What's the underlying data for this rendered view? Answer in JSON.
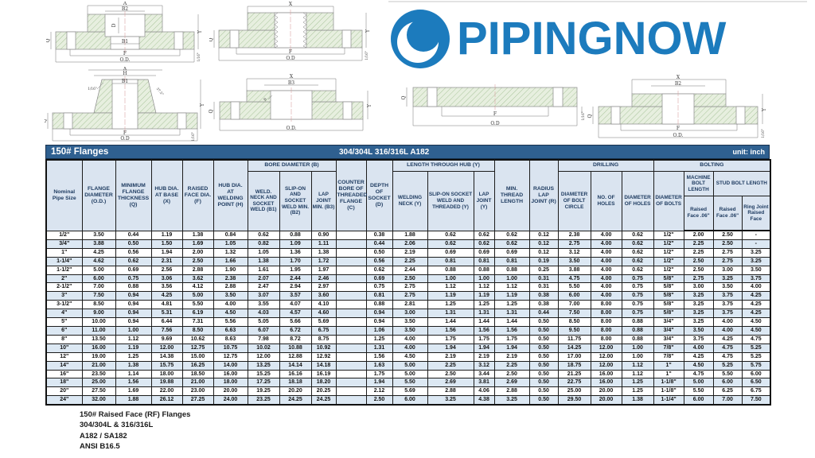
{
  "logo": {
    "text": "PIPINGNOW",
    "color": "#1c7bbd"
  },
  "title_bar": {
    "title": "150# Flanges",
    "material": "304/304L 316/316L A182",
    "unit": "unit: inch"
  },
  "table": {
    "groups": {
      "bore": "BORE DIAMETER (B)",
      "length_hub": "LENGTH THROUGH HUB (Y)",
      "drilling": "DRILLING",
      "bolting": "BOLTING"
    },
    "headers": {
      "size": "Nominal Pipe Size",
      "od": "FLANGE DIAMETER (O.D.)",
      "q": "MINIMUM FLANGE THICKNESS (Q)",
      "x": "HUB DIA. AT BASE (X)",
      "f": "RAISED FACE DIA. (F)",
      "h": "HUB DIA. AT WELDING POINT (H)",
      "b1": "WELD. NECK AND SOCKET WELD (B1)",
      "b2": "SLIP-ON AND SOCKET WELD MIN. (B2)",
      "b3": "LAP JOINT MIN. (B3)",
      "c": "COUNTER BORE OF THREADED FLANGE (C)",
      "d": "DEPTH OF SOCKET (D)",
      "y_wn": "WELDING NECK (Y)",
      "y_so": "SLIP-ON SOCKET WELD AND THREADED (Y)",
      "y_lj": "LAP JOINT (Y)",
      "min_thread": "MIN. THREAD LENGTH",
      "radius": "RADIUS LAP JOINT (R)",
      "bolt_circle": "DIAMETER OF BOLT CIRCLE",
      "num_holes": "NO. OF HOLES",
      "hole_dia": "DIAMETER OF HOLES",
      "bolt_dia": "DIAMETER OF BOLTS",
      "machine_bolt": "MACHINE BOLT LENGTH",
      "stud_bolt": "STUD BOLT LENGTH",
      "rf_machine": "Raised Face .06\"",
      "rf_stud": "Raised Face .06\"",
      "ring_joint": "Ring Joint Raised Face"
    },
    "rows": [
      [
        "1/2\"",
        "3.50",
        "0.44",
        "1.19",
        "1.38",
        "0.84",
        "0.62",
        "0.88",
        "0.90",
        "",
        "0.38",
        "1.88",
        "0.62",
        "0.62",
        "0.62",
        "0.12",
        "2.38",
        "4.00",
        "0.62",
        "1/2\"",
        "2.00",
        "2.50",
        "-"
      ],
      [
        "3/4\"",
        "3.88",
        "0.50",
        "1.50",
        "1.69",
        "1.05",
        "0.82",
        "1.09",
        "1.11",
        "",
        "0.44",
        "2.06",
        "0.62",
        "0.62",
        "0.62",
        "0.12",
        "2.75",
        "4.00",
        "0.62",
        "1/2\"",
        "2.25",
        "2.50",
        "-"
      ],
      [
        "1\"",
        "4.25",
        "0.56",
        "1.94",
        "2.00",
        "1.32",
        "1.05",
        "1.36",
        "1.38",
        "",
        "0.50",
        "2.19",
        "0.69",
        "0.69",
        "0.69",
        "0.12",
        "3.12",
        "4.00",
        "0.62",
        "1/2\"",
        "2.25",
        "2.75",
        "3.25"
      ],
      [
        "1-1/4\"",
        "4.62",
        "0.62",
        "2.31",
        "2.50",
        "1.66",
        "1.38",
        "1.70",
        "1.72",
        "",
        "0.56",
        "2.25",
        "0.81",
        "0.81",
        "0.81",
        "0.19",
        "3.50",
        "4.00",
        "0.62",
        "1/2\"",
        "2.50",
        "2.75",
        "3.25"
      ],
      [
        "1-1/2\"",
        "5.00",
        "0.69",
        "2.56",
        "2.88",
        "1.90",
        "1.61",
        "1.95",
        "1.97",
        "",
        "0.62",
        "2.44",
        "0.88",
        "0.88",
        "0.88",
        "0.25",
        "3.88",
        "4.00",
        "0.62",
        "1/2\"",
        "2.50",
        "3.00",
        "3.50"
      ],
      [
        "2\"",
        "6.00",
        "0.75",
        "3.06",
        "3.62",
        "2.38",
        "2.07",
        "2.44",
        "2.46",
        "",
        "0.69",
        "2.50",
        "1.00",
        "1.00",
        "1.00",
        "0.31",
        "4.75",
        "4.00",
        "0.75",
        "5/8\"",
        "2.75",
        "3.25",
        "3.75"
      ],
      [
        "2-1/2\"",
        "7.00",
        "0.88",
        "3.56",
        "4.12",
        "2.88",
        "2.47",
        "2.94",
        "2.97",
        "",
        "0.75",
        "2.75",
        "1.12",
        "1.12",
        "1.12",
        "0.31",
        "5.50",
        "4.00",
        "0.75",
        "5/8\"",
        "3.00",
        "3.50",
        "4.00"
      ],
      [
        "3\"",
        "7.50",
        "0.94",
        "4.25",
        "5.00",
        "3.50",
        "3.07",
        "3.57",
        "3.60",
        "",
        "0.81",
        "2.75",
        "1.19",
        "1.19",
        "1.19",
        "0.38",
        "6.00",
        "4.00",
        "0.75",
        "5/8\"",
        "3.25",
        "3.75",
        "4.25"
      ],
      [
        "3-1/2\"",
        "8.50",
        "0.94",
        "4.81",
        "5.50",
        "4.00",
        "3.55",
        "4.07",
        "4.10",
        "",
        "0.88",
        "2.81",
        "1.25",
        "1.25",
        "1.25",
        "0.38",
        "7.00",
        "8.00",
        "0.75",
        "5/8\"",
        "3.25",
        "3.75",
        "4.25"
      ],
      [
        "4\"",
        "9.00",
        "0.94",
        "5.31",
        "6.19",
        "4.50",
        "4.03",
        "4.57",
        "4.60",
        "",
        "0.94",
        "3.00",
        "1.31",
        "1.31",
        "1.31",
        "0.44",
        "7.50",
        "8.00",
        "0.75",
        "5/8\"",
        "3.25",
        "3.75",
        "4.25"
      ],
      [
        "5\"",
        "10.00",
        "0.94",
        "6.44",
        "7.31",
        "5.56",
        "5.05",
        "5.66",
        "5.69",
        "",
        "0.94",
        "3.50",
        "1.44",
        "1.44",
        "1.44",
        "0.50",
        "8.50",
        "8.00",
        "0.88",
        "3/4\"",
        "3.25",
        "4.00",
        "4.50"
      ],
      [
        "6\"",
        "11.00",
        "1.00",
        "7.56",
        "8.50",
        "6.63",
        "6.07",
        "6.72",
        "6.75",
        "",
        "1.06",
        "3.50",
        "1.56",
        "1.56",
        "1.56",
        "0.50",
        "9.50",
        "8.00",
        "0.88",
        "3/4\"",
        "3.50",
        "4.00",
        "4.50"
      ],
      [
        "8\"",
        "13.50",
        "1.12",
        "9.69",
        "10.62",
        "8.63",
        "7.98",
        "8.72",
        "8.75",
        "",
        "1.25",
        "4.00",
        "1.75",
        "1.75",
        "1.75",
        "0.50",
        "11.75",
        "8.00",
        "0.88",
        "3/4\"",
        "3.75",
        "4.25",
        "4.75"
      ],
      [
        "10\"",
        "16.00",
        "1.19",
        "12.00",
        "12.75",
        "10.75",
        "10.02",
        "10.88",
        "10.92",
        "",
        "1.31",
        "4.00",
        "1.94",
        "1.94",
        "1.94",
        "0.50",
        "14.25",
        "12.00",
        "1.00",
        "7/8\"",
        "4.00",
        "4.75",
        "5.25"
      ],
      [
        "12\"",
        "19.00",
        "1.25",
        "14.38",
        "15.00",
        "12.75",
        "12.00",
        "12.88",
        "12.92",
        "",
        "1.56",
        "4.50",
        "2.19",
        "2.19",
        "2.19",
        "0.50",
        "17.00",
        "12.00",
        "1.00",
        "7/8\"",
        "4.25",
        "4.75",
        "5.25"
      ],
      [
        "14\"",
        "21.00",
        "1.38",
        "15.75",
        "16.25",
        "14.00",
        "13.25",
        "14.14",
        "14.18",
        "",
        "1.63",
        "5.00",
        "2.25",
        "3.12",
        "2.25",
        "0.50",
        "18.75",
        "12.00",
        "1.12",
        "1\"",
        "4.50",
        "5.25",
        "5.75"
      ],
      [
        "16\"",
        "23.50",
        "1.14",
        "18.00",
        "18.50",
        "16.00",
        "15.25",
        "16.16",
        "16.19",
        "",
        "1.75",
        "5.00",
        "2.50",
        "3.44",
        "2.50",
        "0.50",
        "21.25",
        "16.00",
        "1.12",
        "1\"",
        "4.75",
        "5.50",
        "6.00"
      ],
      [
        "18\"",
        "25.00",
        "1.56",
        "19.88",
        "21.00",
        "18.00",
        "17.25",
        "18.18",
        "18.20",
        "",
        "1.94",
        "5.50",
        "2.69",
        "3.81",
        "2.69",
        "0.50",
        "22.75",
        "16.00",
        "1.25",
        "1-1/8\"",
        "5.00",
        "6.00",
        "6.50"
      ],
      [
        "20\"",
        "27.50",
        "1.69",
        "22.00",
        "23.00",
        "20.00",
        "19.25",
        "20.20",
        "20.25",
        "",
        "2.12",
        "5.69",
        "2.88",
        "4.06",
        "2.88",
        "0.50",
        "25.00",
        "20.00",
        "1.25",
        "1-1/8\"",
        "5.50",
        "6.25",
        "6.75"
      ],
      [
        "24\"",
        "32.00",
        "1.88",
        "26.12",
        "27.25",
        "24.00",
        "23.25",
        "24.25",
        "24.25",
        "",
        "2.50",
        "6.00",
        "3.25",
        "4.38",
        "3.25",
        "0.50",
        "29.50",
        "20.00",
        "1.38",
        "1-1/4\"",
        "6.00",
        "7.00",
        "7.50"
      ]
    ]
  },
  "footer": {
    "lines": [
      "150# Raised Face (RF) Flanges",
      "304/304L & 316/316L",
      "A182 / SA182",
      "ANSI B16.5"
    ]
  },
  "drawings": {
    "socket_weld": {
      "labels": {
        "a": "A",
        "b2": "B2",
        "d": "D",
        "b1": "B1",
        "f": "F",
        "od": "O.D.",
        "q": "Q",
        "y": "Y",
        "gap": "1/16\""
      }
    },
    "threaded": {
      "labels": {
        "x": "X",
        "f": "F",
        "od": "O.D",
        "q": "Q",
        "y": "Y",
        "gap": "1/16\""
      }
    },
    "weld_neck": {
      "labels": {
        "x": "X",
        "h": "H",
        "b1": "B1",
        "gap": "1/16\"",
        "bevel": "37.5°",
        "q": "Q",
        "y": "Y",
        "f": "F",
        "od": "O.D"
      }
    },
    "lap_joint": {
      "labels": {
        "x": "X",
        "b3": "B3",
        "q": "Q",
        "r": "R",
        "od": "O.D.",
        "y": "Y"
      }
    },
    "blind": {
      "labels": {
        "q": "Q",
        "f": "F",
        "od": "O.D",
        "gap": "1/16\""
      }
    },
    "slip_on": {
      "labels": {
        "x": "X",
        "b2": "B2",
        "q": "Q",
        "f": "F",
        "od": "O.D.",
        "y": "Y",
        "gap": "1/16\""
      }
    }
  }
}
